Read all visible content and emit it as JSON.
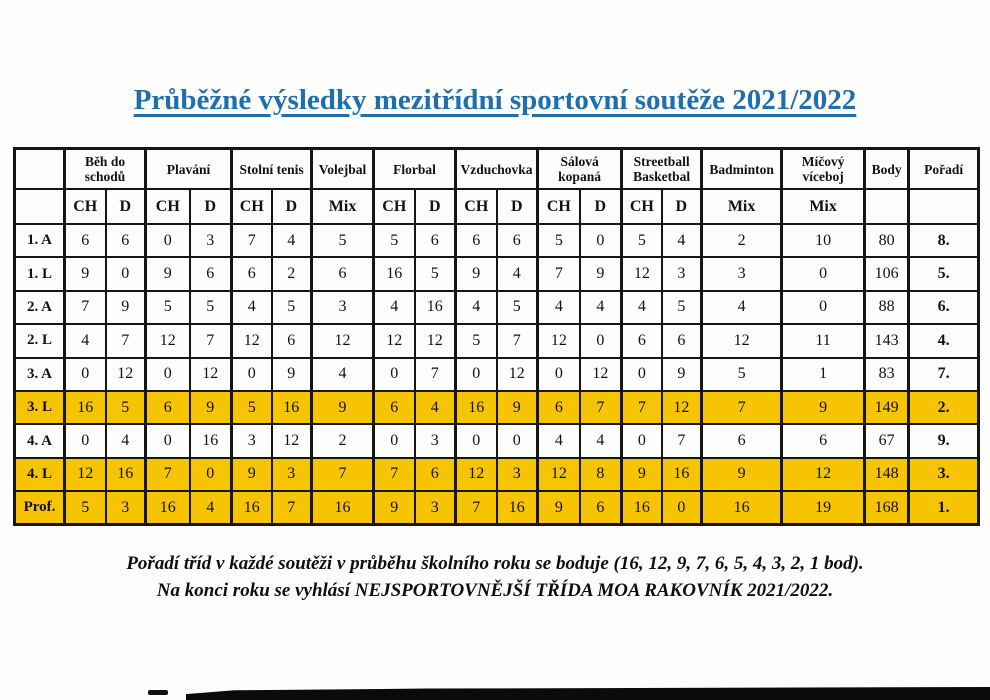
{
  "title": "Průběžné výsledky mezitřídní sportovní soutěže 2021/2022",
  "colors": {
    "title_blue": "#1f6fae",
    "highlight_yellow": "#f6c403",
    "border_black": "#161616"
  },
  "table": {
    "groups": [
      {
        "label": "Běh do schodů",
        "sub": [
          "CH",
          "D"
        ]
      },
      {
        "label": "Plavání",
        "sub": [
          "CH",
          "D"
        ]
      },
      {
        "label": "Stolní tenis",
        "sub": [
          "CH",
          "D"
        ]
      },
      {
        "label": "Volejbal",
        "sub": [
          "Mix"
        ]
      },
      {
        "label": "Florbal",
        "sub": [
          "CH",
          "D"
        ]
      },
      {
        "label": "Vzduchovka",
        "sub": [
          "CH",
          "D"
        ]
      },
      {
        "label": "Sálová kopaná",
        "sub": [
          "CH",
          "D"
        ]
      },
      {
        "label": "Streetball Basketbal",
        "sub": [
          "CH",
          "D"
        ]
      },
      {
        "label": "Badminton",
        "sub": [
          "Mix"
        ]
      },
      {
        "label": "Míčový víceboj",
        "sub": [
          "Mix"
        ]
      },
      {
        "label": "Body",
        "sub": []
      },
      {
        "label": "Pořadí",
        "sub": []
      }
    ],
    "rows": [
      {
        "label": "1. A",
        "highlight": false,
        "cells": [
          "6",
          "6",
          "0",
          "3",
          "7",
          "4",
          "5",
          "5",
          "6",
          "6",
          "6",
          "5",
          "0",
          "5",
          "4",
          "2",
          "10",
          "80",
          "8."
        ]
      },
      {
        "label": "1. L",
        "highlight": false,
        "cells": [
          "9",
          "0",
          "9",
          "6",
          "6",
          "2",
          "6",
          "16",
          "5",
          "9",
          "4",
          "7",
          "9",
          "12",
          "3",
          "3",
          "0",
          "106",
          "5."
        ]
      },
      {
        "label": "2. A",
        "highlight": false,
        "cells": [
          "7",
          "9",
          "5",
          "5",
          "4",
          "5",
          "3",
          "4",
          "16",
          "4",
          "5",
          "4",
          "4",
          "4",
          "5",
          "4",
          "0",
          "88",
          "6."
        ]
      },
      {
        "label": "2. L",
        "highlight": false,
        "cells": [
          "4",
          "7",
          "12",
          "7",
          "12",
          "6",
          "12",
          "12",
          "12",
          "5",
          "7",
          "12",
          "0",
          "6",
          "6",
          "12",
          "11",
          "143",
          "4."
        ]
      },
      {
        "label": "3. A",
        "highlight": false,
        "cells": [
          "0",
          "12",
          "0",
          "12",
          "0",
          "9",
          "4",
          "0",
          "7",
          "0",
          "12",
          "0",
          "12",
          "0",
          "9",
          "5",
          "1",
          "83",
          "7."
        ]
      },
      {
        "label": "3. L",
        "highlight": true,
        "cells": [
          "16",
          "5",
          "6",
          "9",
          "5",
          "16",
          "9",
          "6",
          "4",
          "16",
          "9",
          "6",
          "7",
          "7",
          "12",
          "7",
          "9",
          "149",
          "2."
        ]
      },
      {
        "label": "4. A",
        "highlight": false,
        "cells": [
          "0",
          "4",
          "0",
          "16",
          "3",
          "12",
          "2",
          "0",
          "3",
          "0",
          "0",
          "4",
          "4",
          "0",
          "7",
          "6",
          "6",
          "67",
          "9."
        ]
      },
      {
        "label": "4. L",
        "highlight": true,
        "cells": [
          "12",
          "16",
          "7",
          "0",
          "9",
          "3",
          "7",
          "7",
          "6",
          "12",
          "3",
          "12",
          "8",
          "9",
          "16",
          "9",
          "12",
          "148",
          "3."
        ]
      },
      {
        "label": "Prof.",
        "highlight": true,
        "cells": [
          "5",
          "3",
          "16",
          "4",
          "16",
          "7",
          "16",
          "9",
          "3",
          "7",
          "16",
          "9",
          "6",
          "16",
          "0",
          "16",
          "19",
          "168",
          "1."
        ]
      }
    ]
  },
  "footer": {
    "line1": "Pořadí tříd v každé soutěži v průběhu školního roku se boduje (16, 12, 9, 7, 6, 5, 4, 3, 2, 1 bod).",
    "line2": "Na konci roku se vyhlásí NEJSPORTOVNĚJŠÍ TŘÍDA MOA RAKOVNÍK 2021/2022."
  }
}
